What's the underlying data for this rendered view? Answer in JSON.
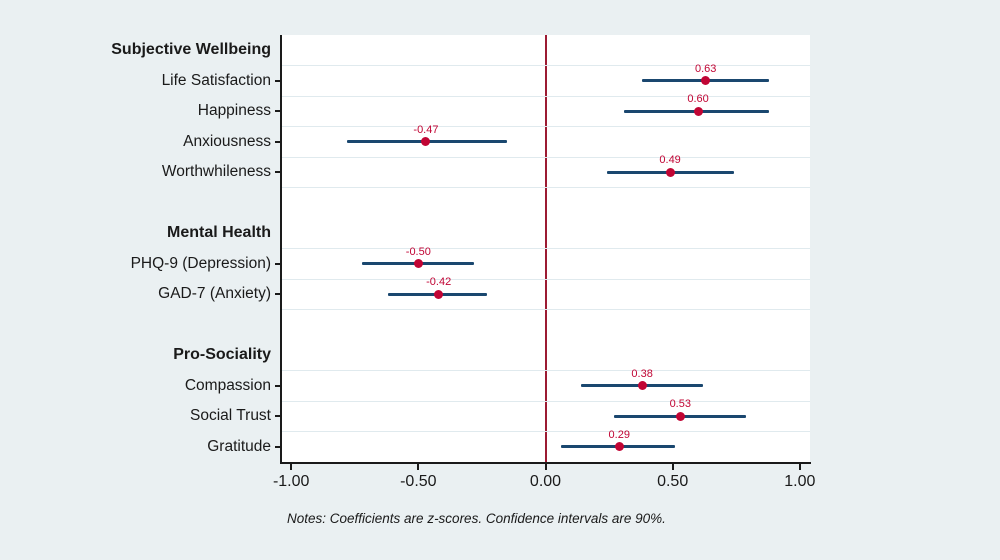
{
  "figure": {
    "background_color": "#eaf0f2",
    "plot_background_color": "#ffffff"
  },
  "chart_data": {
    "type": "scatter",
    "subtype": "horizontal-coefficient-plot-with-confidence-intervals",
    "ci_level": "90%",
    "title": "",
    "xlabel": "",
    "ylabel": "",
    "xlim": [
      -1.04,
      1.04
    ],
    "grid": "horizontal-faint",
    "legend": "none",
    "refline": {
      "value": 0,
      "color": "#9c1b33"
    },
    "colors": {
      "ci_line": "#1a476f",
      "point": "#c10534",
      "value_label": "#c10534",
      "gridline": "#e0eaee",
      "axis": "#1a1a1a"
    },
    "xticks": [
      {
        "value": -1.0,
        "label": "-1.00"
      },
      {
        "value": -0.5,
        "label": "-0.50"
      },
      {
        "value": 0.0,
        "label": "0.00"
      },
      {
        "value": 0.5,
        "label": "0.50"
      },
      {
        "value": 1.0,
        "label": "1.00"
      }
    ],
    "rows": [
      {
        "type": "header",
        "label": "Subjective Wellbeing",
        "grid": true
      },
      {
        "type": "coef",
        "label": "Life Satisfaction",
        "estimate": 0.63,
        "estimate_label": "0.63",
        "ci_low": 0.38,
        "ci_high": 0.88,
        "grid": true
      },
      {
        "type": "coef",
        "label": "Happiness",
        "estimate": 0.6,
        "estimate_label": "0.60",
        "ci_low": 0.31,
        "ci_high": 0.88,
        "grid": true
      },
      {
        "type": "coef",
        "label": "Anxiousness",
        "estimate": -0.47,
        "estimate_label": "-0.47",
        "ci_low": -0.78,
        "ci_high": -0.15,
        "grid": true
      },
      {
        "type": "coef",
        "label": "Worthwhileness",
        "estimate": 0.49,
        "estimate_label": "0.49",
        "ci_low": 0.24,
        "ci_high": 0.74,
        "grid": true
      },
      {
        "type": "spacer",
        "label": "",
        "grid": false
      },
      {
        "type": "header",
        "label": "Mental Health",
        "grid": true
      },
      {
        "type": "coef",
        "label": "PHQ-9 (Depression)",
        "estimate": -0.5,
        "estimate_label": "-0.50",
        "ci_low": -0.72,
        "ci_high": -0.28,
        "grid": true
      },
      {
        "type": "coef",
        "label": "GAD-7 (Anxiety)",
        "estimate": -0.42,
        "estimate_label": "-0.42",
        "ci_low": -0.62,
        "ci_high": -0.23,
        "grid": true
      },
      {
        "type": "spacer",
        "label": "",
        "grid": false
      },
      {
        "type": "header",
        "label": "Pro-Sociality",
        "grid": true
      },
      {
        "type": "coef",
        "label": "Compassion",
        "estimate": 0.38,
        "estimate_label": "0.38",
        "ci_low": 0.14,
        "ci_high": 0.62,
        "grid": true
      },
      {
        "type": "coef",
        "label": "Social Trust",
        "estimate": 0.53,
        "estimate_label": "0.53",
        "ci_low": 0.27,
        "ci_high": 0.79,
        "grid": true
      },
      {
        "type": "coef",
        "label": "Gratitude",
        "estimate": 0.29,
        "estimate_label": "0.29",
        "ci_low": 0.06,
        "ci_high": 0.51,
        "grid": true
      }
    ],
    "notes": "Notes: Coefficients are z-scores. Confidence intervals are 90%."
  }
}
